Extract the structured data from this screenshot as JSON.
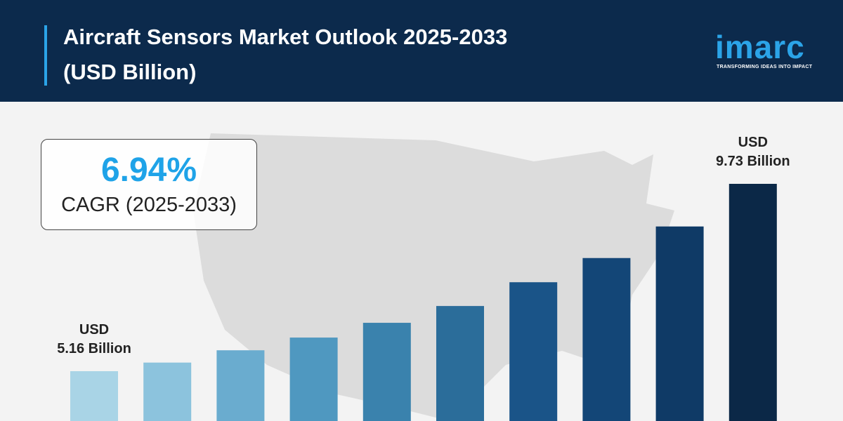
{
  "header": {
    "title": "Aircraft Sensors Market Outlook 2025-2033 (USD Billion)",
    "logo": "imarc",
    "tagline": "TRANSFORMING IDEAS INTO IMPACT"
  },
  "callout": {
    "value": "6.94%",
    "label": "CAGR (2025-2033)"
  },
  "chart_data": {
    "type": "bar",
    "categories": [
      null,
      null,
      null,
      null,
      null,
      null,
      null,
      null,
      null,
      null
    ],
    "values": [
      5.16,
      5.37,
      5.67,
      5.98,
      6.34,
      6.75,
      7.33,
      7.92,
      8.69,
      9.73
    ],
    "value_labels": [
      [
        "USD",
        "5.16 Billion"
      ],
      null,
      null,
      null,
      null,
      null,
      null,
      null,
      null,
      [
        "USD",
        "9.73 Billion"
      ]
    ],
    "colors": [
      "#a9d4e6",
      "#8cc3dd",
      "#6aaccf",
      "#4f98c0",
      "#3a82ad",
      "#2b6d9a",
      "#1a5488",
      "#134677",
      "#0f3a66",
      "#0b2847"
    ]
  }
}
